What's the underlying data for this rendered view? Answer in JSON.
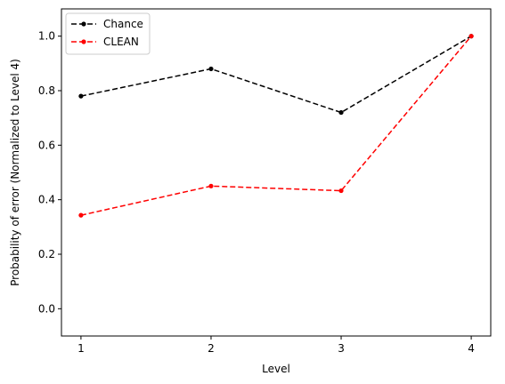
{
  "chart_data": {
    "type": "line",
    "x": [
      1,
      2,
      3,
      4
    ],
    "series": [
      {
        "name": "Chance",
        "values": [
          0.78,
          0.88,
          0.72,
          1.0
        ],
        "color": "#000000",
        "linestyle": "dashed",
        "marker": "dot"
      },
      {
        "name": "CLEAN",
        "values": [
          0.343,
          0.45,
          0.433,
          1.0
        ],
        "color": "#ff0000",
        "linestyle": "dashed",
        "marker": "dot"
      }
    ],
    "xlabel": "Level",
    "ylabel": "Probability of error (Normalized to Level 4)",
    "xticks": [
      "1",
      "2",
      "3",
      "4"
    ],
    "yticks": [
      "0.0",
      "0.2",
      "0.4",
      "0.6",
      "0.8",
      "1.0"
    ],
    "ytick_values": [
      0.0,
      0.2,
      0.4,
      0.6,
      0.8,
      1.0
    ],
    "xlim": [
      0.85,
      4.15
    ],
    "ylim": [
      -0.1,
      1.1
    ],
    "grid": false,
    "legend_position": "top-left"
  }
}
